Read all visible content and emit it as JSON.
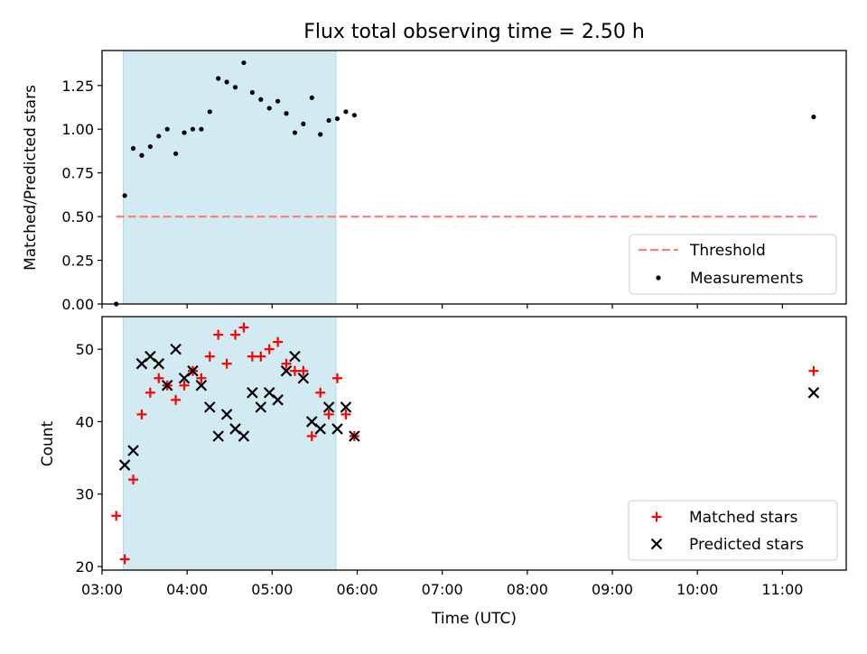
{
  "chart_data": [
    {
      "type": "scatter",
      "title": "Flux total observing time = 2.50 h",
      "xlabel": "",
      "ylabel": "Matched/Predicted stars",
      "xlim": [
        "03:00",
        "11:45"
      ],
      "ylim": [
        0,
        1.45
      ],
      "yticks": [
        "0.00",
        "0.25",
        "0.50",
        "0.75",
        "1.00",
        "1.25"
      ],
      "shaded_region": {
        "x_start": "03:15",
        "x_end": "05:45",
        "color": "#add8e6"
      },
      "threshold": {
        "name": "Threshold",
        "y": 0.5,
        "x_start": "03:10",
        "x_end": "11:25",
        "color": "#ff7f7f",
        "style": "dashed"
      },
      "series": [
        {
          "name": "Measurements",
          "marker": "dot",
          "color": "#000000",
          "x": [
            "03:10",
            "03:16",
            "03:22",
            "03:28",
            "03:34",
            "03:40",
            "03:46",
            "03:52",
            "03:58",
            "04:04",
            "04:10",
            "04:16",
            "04:22",
            "04:28",
            "04:34",
            "04:40",
            "04:46",
            "04:52",
            "04:58",
            "05:04",
            "05:10",
            "05:16",
            "05:22",
            "05:28",
            "05:34",
            "05:40",
            "05:46",
            "05:52",
            "05:58",
            "11:22"
          ],
          "y": [
            0.0,
            0.62,
            0.89,
            0.85,
            0.9,
            0.96,
            1.0,
            0.86,
            0.98,
            1.0,
            1.0,
            1.1,
            1.29,
            1.27,
            1.24,
            1.38,
            1.21,
            1.17,
            1.12,
            1.16,
            1.09,
            0.98,
            1.03,
            1.18,
            0.97,
            1.05,
            1.06,
            1.1,
            1.08,
            1.07
          ]
        }
      ],
      "legend": {
        "position": "lower-right",
        "entries": [
          "Threshold",
          "Measurements"
        ]
      }
    },
    {
      "type": "scatter",
      "title": "",
      "xlabel": "Time (UTC)",
      "ylabel": "Count",
      "xlim": [
        "03:00",
        "11:45"
      ],
      "ylim": [
        19.5,
        54.5
      ],
      "yticks": [
        "20",
        "30",
        "40",
        "50"
      ],
      "xticks": [
        "03:00",
        "04:00",
        "05:00",
        "06:00",
        "07:00",
        "08:00",
        "09:00",
        "10:00",
        "11:00"
      ],
      "shaded_region": {
        "x_start": "03:15",
        "x_end": "05:45",
        "color": "#add8e6"
      },
      "series": [
        {
          "name": "Matched stars",
          "marker": "plus",
          "color": "#ff0000",
          "x": [
            "03:10",
            "03:16",
            "03:22",
            "03:28",
            "03:34",
            "03:40",
            "03:46",
            "03:52",
            "03:58",
            "04:04",
            "04:10",
            "04:16",
            "04:22",
            "04:28",
            "04:34",
            "04:40",
            "04:46",
            "04:52",
            "04:58",
            "05:04",
            "05:10",
            "05:16",
            "05:22",
            "05:28",
            "05:34",
            "05:40",
            "05:46",
            "05:52",
            "05:58",
            "11:22"
          ],
          "y": [
            27,
            21,
            32,
            41,
            44,
            46,
            45,
            43,
            45,
            47,
            46,
            49,
            52,
            48,
            52,
            53,
            49,
            49,
            50,
            51,
            48,
            47,
            47,
            38,
            44,
            41,
            46,
            41,
            38,
            47
          ]
        },
        {
          "name": "Predicted stars",
          "marker": "x",
          "color": "#000000",
          "x": [
            "03:16",
            "03:22",
            "03:28",
            "03:34",
            "03:40",
            "03:46",
            "03:52",
            "03:58",
            "04:04",
            "04:10",
            "04:16",
            "04:22",
            "04:28",
            "04:34",
            "04:40",
            "04:46",
            "04:52",
            "04:58",
            "05:04",
            "05:10",
            "05:16",
            "05:22",
            "05:28",
            "05:34",
            "05:40",
            "05:46",
            "05:52",
            "05:58",
            "11:22"
          ],
          "y": [
            34,
            36,
            48,
            49,
            48,
            45,
            50,
            46,
            47,
            45,
            42,
            38,
            41,
            39,
            38,
            44,
            42,
            44,
            43,
            47,
            49,
            46,
            40,
            39,
            42,
            39,
            42,
            38,
            44
          ]
        }
      ],
      "legend": {
        "position": "lower-right",
        "entries": [
          "Matched stars",
          "Predicted stars"
        ]
      }
    }
  ]
}
